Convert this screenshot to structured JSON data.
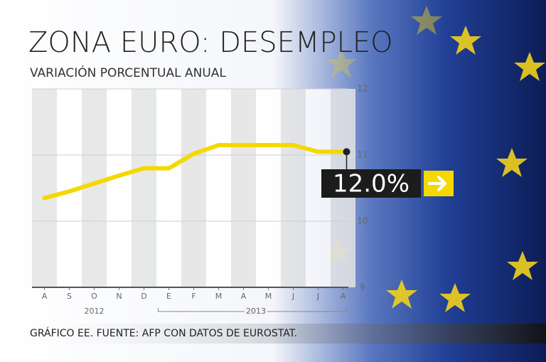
{
  "chart_data": {
    "type": "line",
    "title": "ZONA EURO: DESEMPLEO",
    "subtitle": "VARIACIÓN PORCENTUAL ANUAL",
    "categories": [
      "A",
      "S",
      "O",
      "N",
      "D",
      "E",
      "F",
      "M",
      "A",
      "M",
      "J",
      "J",
      "A"
    ],
    "years": [
      "2012",
      "2013"
    ],
    "series": [
      {
        "color": "#f5d800",
        "values": [
          10.35,
          10.45,
          10.57,
          10.69,
          10.8,
          10.8,
          11.02,
          11.15,
          11.15,
          11.15,
          11.15,
          11.05,
          11.05
        ]
      }
    ],
    "ylim": [
      9,
      12
    ],
    "yticks": [
      9,
      10,
      11,
      12
    ],
    "grid": true,
    "annotation": "12.0%",
    "source": "GRÁFICO EE. FUENTE: AFP CON DATOS DE EUROSTAT."
  }
}
